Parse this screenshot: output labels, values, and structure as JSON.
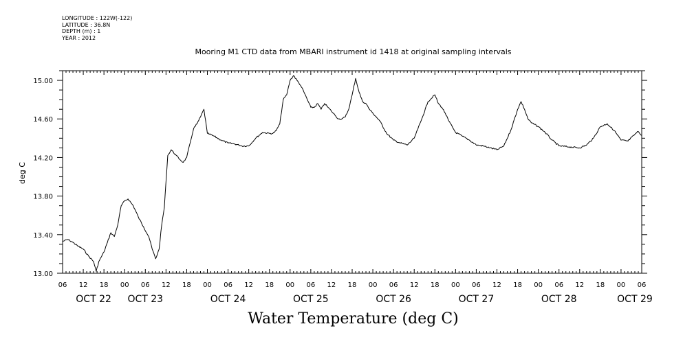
{
  "header": {
    "longitude": "LONGITUDE : 122W(-122)",
    "latitude": "LATITUDE : 36.8N",
    "depth": "DEPTH (m) : 1",
    "year": "YEAR : 2012"
  },
  "chart_data": {
    "type": "line",
    "title": "Mooring M1 CTD data from MBARI instrument id 1418 at original sampling intervals",
    "xlabel": "Water Temperature (deg C)",
    "ylabel": "deg C",
    "xlim": [
      "2012-10-22T06:00",
      "2012-10-29T06:00"
    ],
    "ylim": [
      13.0,
      15.1
    ],
    "y_ticks": [
      "13.00",
      "13.40",
      "13.80",
      "14.20",
      "14.60",
      "15.00"
    ],
    "x_hour_ticks": [
      "06",
      "12",
      "18",
      "00",
      "06",
      "12",
      "18",
      "00",
      "06",
      "12",
      "18",
      "00",
      "06",
      "12",
      "18",
      "00",
      "06",
      "12",
      "18",
      "00",
      "06",
      "12",
      "18",
      "00",
      "06",
      "12",
      "18",
      "00",
      "06"
    ],
    "x_day_labels": [
      "OCT 22",
      "OCT 23",
      "OCT 24",
      "OCT 25",
      "OCT 26",
      "OCT 27",
      "OCT 28",
      "OCT 29"
    ],
    "grid": false,
    "line_color": "#000000",
    "series": [
      {
        "x": [
          "2012-10-22T06:00",
          "2012-10-22T07:30",
          "2012-10-22T09:00",
          "2012-10-22T10:30",
          "2012-10-22T12:00",
          "2012-10-22T13:30",
          "2012-10-22T15:00",
          "2012-10-22T15:45",
          "2012-10-22T16:30",
          "2012-10-22T18:00",
          "2012-10-22T19:00",
          "2012-10-22T20:00",
          "2012-10-22T21:00",
          "2012-10-22T22:00",
          "2012-10-22T23:00",
          "2012-10-23T00:00",
          "2012-10-23T01:00",
          "2012-10-23T02:30",
          "2012-10-23T04:00",
          "2012-10-23T05:30",
          "2012-10-23T07:00",
          "2012-10-23T08:00",
          "2012-10-23T09:00",
          "2012-10-23T10:00",
          "2012-10-23T10:45",
          "2012-10-23T11:30",
          "2012-10-23T12:30",
          "2012-10-23T13:30",
          "2012-10-23T15:00",
          "2012-10-23T16:00",
          "2012-10-23T17:00",
          "2012-10-23T18:00",
          "2012-10-23T19:00",
          "2012-10-23T20:00",
          "2012-10-23T21:00",
          "2012-10-23T22:00",
          "2012-10-23T23:00",
          "2012-10-24T00:00",
          "2012-10-24T02:00",
          "2012-10-24T04:00",
          "2012-10-24T06:00",
          "2012-10-24T08:00",
          "2012-10-24T10:00",
          "2012-10-24T12:00",
          "2012-10-24T14:00",
          "2012-10-24T16:00",
          "2012-10-24T18:00",
          "2012-10-24T19:00",
          "2012-10-24T20:00",
          "2012-10-24T21:00",
          "2012-10-24T22:00",
          "2012-10-24T23:00",
          "2012-10-25T00:00",
          "2012-10-25T01:00",
          "2012-10-25T02:00",
          "2012-10-25T03:00",
          "2012-10-25T04:00",
          "2012-10-25T05:00",
          "2012-10-25T06:00",
          "2012-10-25T07:00",
          "2012-10-25T08:00",
          "2012-10-25T09:00",
          "2012-10-25T10:00",
          "2012-10-25T11:00",
          "2012-10-25T12:00",
          "2012-10-25T13:00",
          "2012-10-25T14:00",
          "2012-10-25T15:00",
          "2012-10-25T16:00",
          "2012-10-25T17:00",
          "2012-10-25T18:00",
          "2012-10-25T19:00",
          "2012-10-25T20:00",
          "2012-10-25T21:00",
          "2012-10-25T22:00",
          "2012-10-25T23:00",
          "2012-10-26T00:00",
          "2012-10-26T01:00",
          "2012-10-26T02:00",
          "2012-10-26T04:00",
          "2012-10-26T06:00",
          "2012-10-26T08:00",
          "2012-10-26T10:00",
          "2012-10-26T12:00",
          "2012-10-26T14:00",
          "2012-10-26T16:00",
          "2012-10-26T18:00",
          "2012-10-26T19:00",
          "2012-10-26T20:00",
          "2012-10-26T21:00",
          "2012-10-26T22:00",
          "2012-10-27T00:00",
          "2012-10-27T02:00",
          "2012-10-27T04:00",
          "2012-10-27T06:00",
          "2012-10-27T08:00",
          "2012-10-27T10:00",
          "2012-10-27T12:00",
          "2012-10-27T14:00",
          "2012-10-27T16:00",
          "2012-10-27T18:00",
          "2012-10-27T19:00",
          "2012-10-27T20:00",
          "2012-10-27T21:00",
          "2012-10-27T22:00",
          "2012-10-28T00:00",
          "2012-10-28T02:00",
          "2012-10-28T04:00",
          "2012-10-28T06:00",
          "2012-10-28T09:00",
          "2012-10-28T12:00",
          "2012-10-28T14:00",
          "2012-10-28T16:00",
          "2012-10-28T18:00",
          "2012-10-28T20:00",
          "2012-10-28T22:00",
          "2012-10-29T00:00",
          "2012-10-29T02:00",
          "2012-10-29T04:00",
          "2012-10-29T05:00",
          "2012-10-29T06:00"
        ],
        "y": [
          13.33,
          13.35,
          13.32,
          13.28,
          13.25,
          13.18,
          13.12,
          13.02,
          13.12,
          13.22,
          13.32,
          13.42,
          13.38,
          13.5,
          13.7,
          13.75,
          13.77,
          13.7,
          13.58,
          13.48,
          13.38,
          13.25,
          13.15,
          13.25,
          13.5,
          13.68,
          14.22,
          14.28,
          14.22,
          14.18,
          14.15,
          14.2,
          14.35,
          14.5,
          14.55,
          14.62,
          14.7,
          14.45,
          14.42,
          14.38,
          14.35,
          14.34,
          14.32,
          14.32,
          14.4,
          14.46,
          14.45,
          14.45,
          14.48,
          14.55,
          14.8,
          14.85,
          15.0,
          15.05,
          15.0,
          14.95,
          14.88,
          14.8,
          14.72,
          14.72,
          14.76,
          14.7,
          14.76,
          14.72,
          14.68,
          14.64,
          14.6,
          14.6,
          14.62,
          14.7,
          14.85,
          15.02,
          14.88,
          14.78,
          14.76,
          14.7,
          14.66,
          14.62,
          14.58,
          14.45,
          14.38,
          14.35,
          14.33,
          14.4,
          14.58,
          14.78,
          14.85,
          14.76,
          14.72,
          14.66,
          14.58,
          14.46,
          14.42,
          14.38,
          14.33,
          14.32,
          14.3,
          14.28,
          14.32,
          14.48,
          14.7,
          14.78,
          14.7,
          14.6,
          14.56,
          14.52,
          14.46,
          14.38,
          14.32,
          14.31,
          14.3,
          14.33,
          14.4,
          14.52,
          14.55,
          14.48,
          14.38,
          14.37,
          14.44,
          14.47,
          14.43
        ]
      }
    ]
  }
}
